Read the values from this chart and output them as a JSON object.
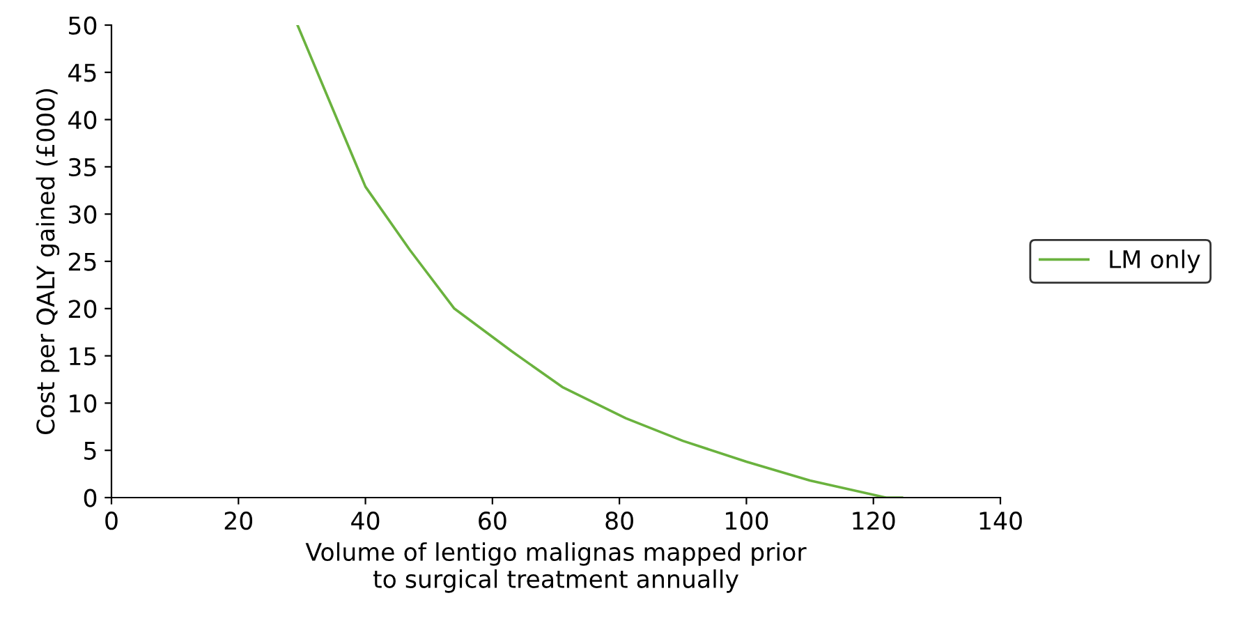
{
  "chart_data": {
    "type": "line",
    "xlabel": "Volume of lentigo malignas mapped prior\nto surgical treatment annually",
    "ylabel": "Cost per QALY gained (£000)",
    "x": [
      29.3,
      40,
      47,
      54,
      63,
      71,
      81,
      90,
      100,
      110,
      122,
      124.5
    ],
    "series": [
      {
        "name": "LM only",
        "color": "#6ab23e",
        "values": [
          50,
          32.9,
          26.2,
          20,
          15.5,
          11.7,
          8.4,
          6,
          3.8,
          1.8,
          0,
          0
        ]
      }
    ],
    "xlim": [
      0,
      140
    ],
    "xticks": [
      0,
      20,
      40,
      60,
      80,
      100,
      120,
      140
    ],
    "ylim": [
      0,
      50
    ],
    "yticks": [
      0,
      5,
      10,
      15,
      20,
      25,
      30,
      35,
      40,
      45,
      50
    ],
    "grid": false,
    "legend": "right",
    "marker": "none",
    "line_style": "solid"
  }
}
